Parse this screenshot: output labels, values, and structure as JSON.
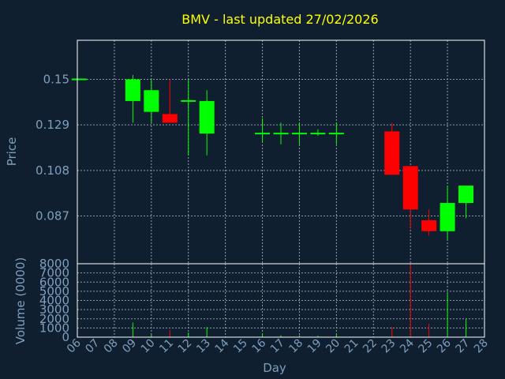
{
  "chart_data": {
    "type": "candlestick",
    "title": "BMV - last updated 27/02/2026",
    "xlabel": "Day",
    "price_panel": {
      "ylabel": "Price",
      "yticks": [
        "0.15",
        "0.129",
        "0.108",
        "0.087"
      ],
      "ytick_values": [
        0.15,
        0.129,
        0.108,
        0.087
      ],
      "ylim": [
        0.065,
        0.168
      ],
      "grid": true
    },
    "volume_panel": {
      "ylabel": "Volume (0000)",
      "yticks": [
        "8000",
        "7000",
        "6000",
        "5000",
        "4000",
        "3000",
        "2000",
        "1000",
        "0"
      ],
      "ytick_values": [
        8000,
        7000,
        6000,
        5000,
        4000,
        3000,
        2000,
        1000,
        0
      ],
      "ylim": [
        0,
        8000
      ],
      "grid": true
    },
    "x_ticks": [
      "06",
      "07",
      "08",
      "09",
      "10",
      "11",
      "12",
      "13",
      "14",
      "15",
      "16",
      "17",
      "18",
      "19",
      "20",
      "21",
      "22",
      "23",
      "24",
      "25",
      "26",
      "27",
      "28"
    ],
    "x_tick_values": [
      6,
      7,
      8,
      9,
      10,
      11,
      12,
      13,
      14,
      15,
      16,
      17,
      18,
      19,
      20,
      21,
      22,
      23,
      24,
      25,
      26,
      27,
      28
    ],
    "xlim": [
      6,
      28
    ],
    "x_grid_days": [
      8,
      10,
      12,
      14,
      16,
      18,
      20,
      22,
      24,
      26,
      28
    ],
    "candles": [
      {
        "day": 6.1,
        "open": 0.15,
        "close": 0.15,
        "high": 0.15,
        "low": 0.15,
        "volume": 0
      },
      {
        "day": 9,
        "open": 0.14,
        "close": 0.15,
        "high": 0.152,
        "low": 0.13,
        "volume": 1600
      },
      {
        "day": 10,
        "open": 0.135,
        "close": 0.145,
        "high": 0.15,
        "low": 0.13,
        "volume": 300
      },
      {
        "day": 11,
        "open": 0.134,
        "close": 0.13,
        "high": 0.15,
        "low": 0.13,
        "volume": 800
      },
      {
        "day": 12,
        "open": 0.14,
        "close": 0.14,
        "high": 0.15,
        "low": 0.115,
        "volume": 500
      },
      {
        "day": 13,
        "open": 0.125,
        "close": 0.14,
        "high": 0.145,
        "low": 0.115,
        "volume": 1100
      },
      {
        "day": 16,
        "open": 0.125,
        "close": 0.125,
        "high": 0.132,
        "low": 0.121,
        "volume": 400
      },
      {
        "day": 17,
        "open": 0.125,
        "close": 0.125,
        "high": 0.13,
        "low": 0.12,
        "volume": 200
      },
      {
        "day": 18,
        "open": 0.125,
        "close": 0.125,
        "high": 0.13,
        "low": 0.12,
        "volume": 200
      },
      {
        "day": 19,
        "open": 0.125,
        "close": 0.125,
        "high": 0.127,
        "low": 0.124,
        "volume": 150
      },
      {
        "day": 20,
        "open": 0.125,
        "close": 0.125,
        "high": 0.13,
        "low": 0.12,
        "volume": 300
      },
      {
        "day": 23,
        "open": 0.126,
        "close": 0.106,
        "high": 0.13,
        "low": 0.106,
        "volume": 1100
      },
      {
        "day": 24,
        "open": 0.11,
        "close": 0.09,
        "high": 0.11,
        "low": 0.081,
        "volume": 8000
      },
      {
        "day": 25,
        "open": 0.085,
        "close": 0.08,
        "high": 0.09,
        "low": 0.078,
        "volume": 1500
      },
      {
        "day": 26,
        "open": 0.08,
        "close": 0.093,
        "high": 0.101,
        "low": 0.076,
        "volume": 4800
      },
      {
        "day": 27,
        "open": 0.093,
        "close": 0.101,
        "high": 0.101,
        "low": 0.086,
        "volume": 2000
      }
    ],
    "colors": {
      "up": "#00ff00",
      "down": "#ff0000",
      "background": "#0f1f2f",
      "title": "#ffff00",
      "axis_text": "#7f9fbf"
    }
  }
}
